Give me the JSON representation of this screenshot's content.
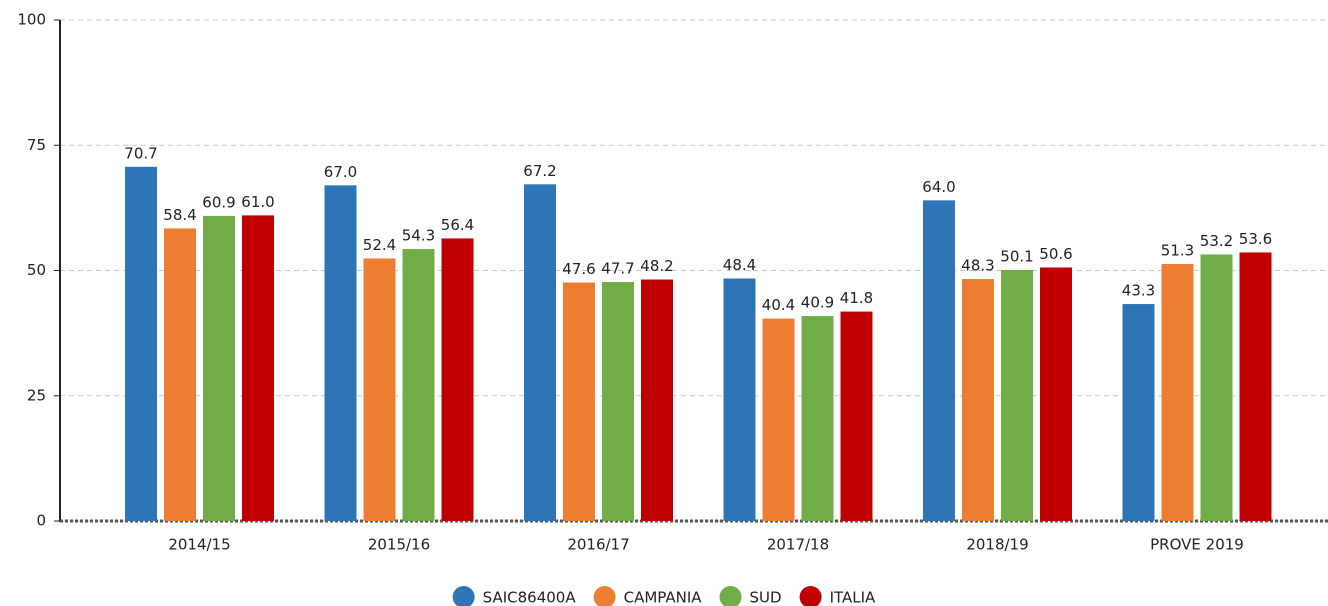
{
  "chart_data": {
    "type": "bar",
    "categories": [
      "2014/15",
      "2015/16",
      "2016/17",
      "2017/18",
      "2018/19",
      "PROVE 2019"
    ],
    "series": [
      {
        "name": "SAIC86400A",
        "color": "#2e75b6",
        "values": [
          70.7,
          67,
          67.2,
          48.4,
          64,
          43.3
        ],
        "value_labels": [
          "70.7",
          "67.0",
          "67.2",
          "48.4",
          "64.0",
          "43.3"
        ]
      },
      {
        "name": "CAMPANIA",
        "color": "#ed7d31",
        "values": [
          58.4,
          52.4,
          47.6,
          40.4,
          48.3,
          51.3
        ],
        "value_labels": [
          "58.4",
          "52.4",
          "47.6",
          "40.4",
          "48.3",
          "51.3"
        ]
      },
      {
        "name": "SUD",
        "color": "#70ad47",
        "values": [
          60.9,
          54.3,
          47.7,
          40.9,
          50.1,
          53.2
        ],
        "value_labels": [
          "60.9",
          "54.3",
          "47.7",
          "40.9",
          "50.1",
          "53.2"
        ]
      },
      {
        "name": "ITALIA",
        "color": "#c00000",
        "values": [
          61,
          56.4,
          48.2,
          41.8,
          50.6,
          53.6
        ],
        "value_labels": [
          "61.0",
          "56.4",
          "48.2",
          "41.8",
          "50.6",
          "53.6"
        ]
      }
    ],
    "ylim": [
      0,
      100
    ],
    "yticks": [
      0,
      25,
      50,
      75,
      100
    ],
    "grid": true,
    "legend": "bottom"
  }
}
